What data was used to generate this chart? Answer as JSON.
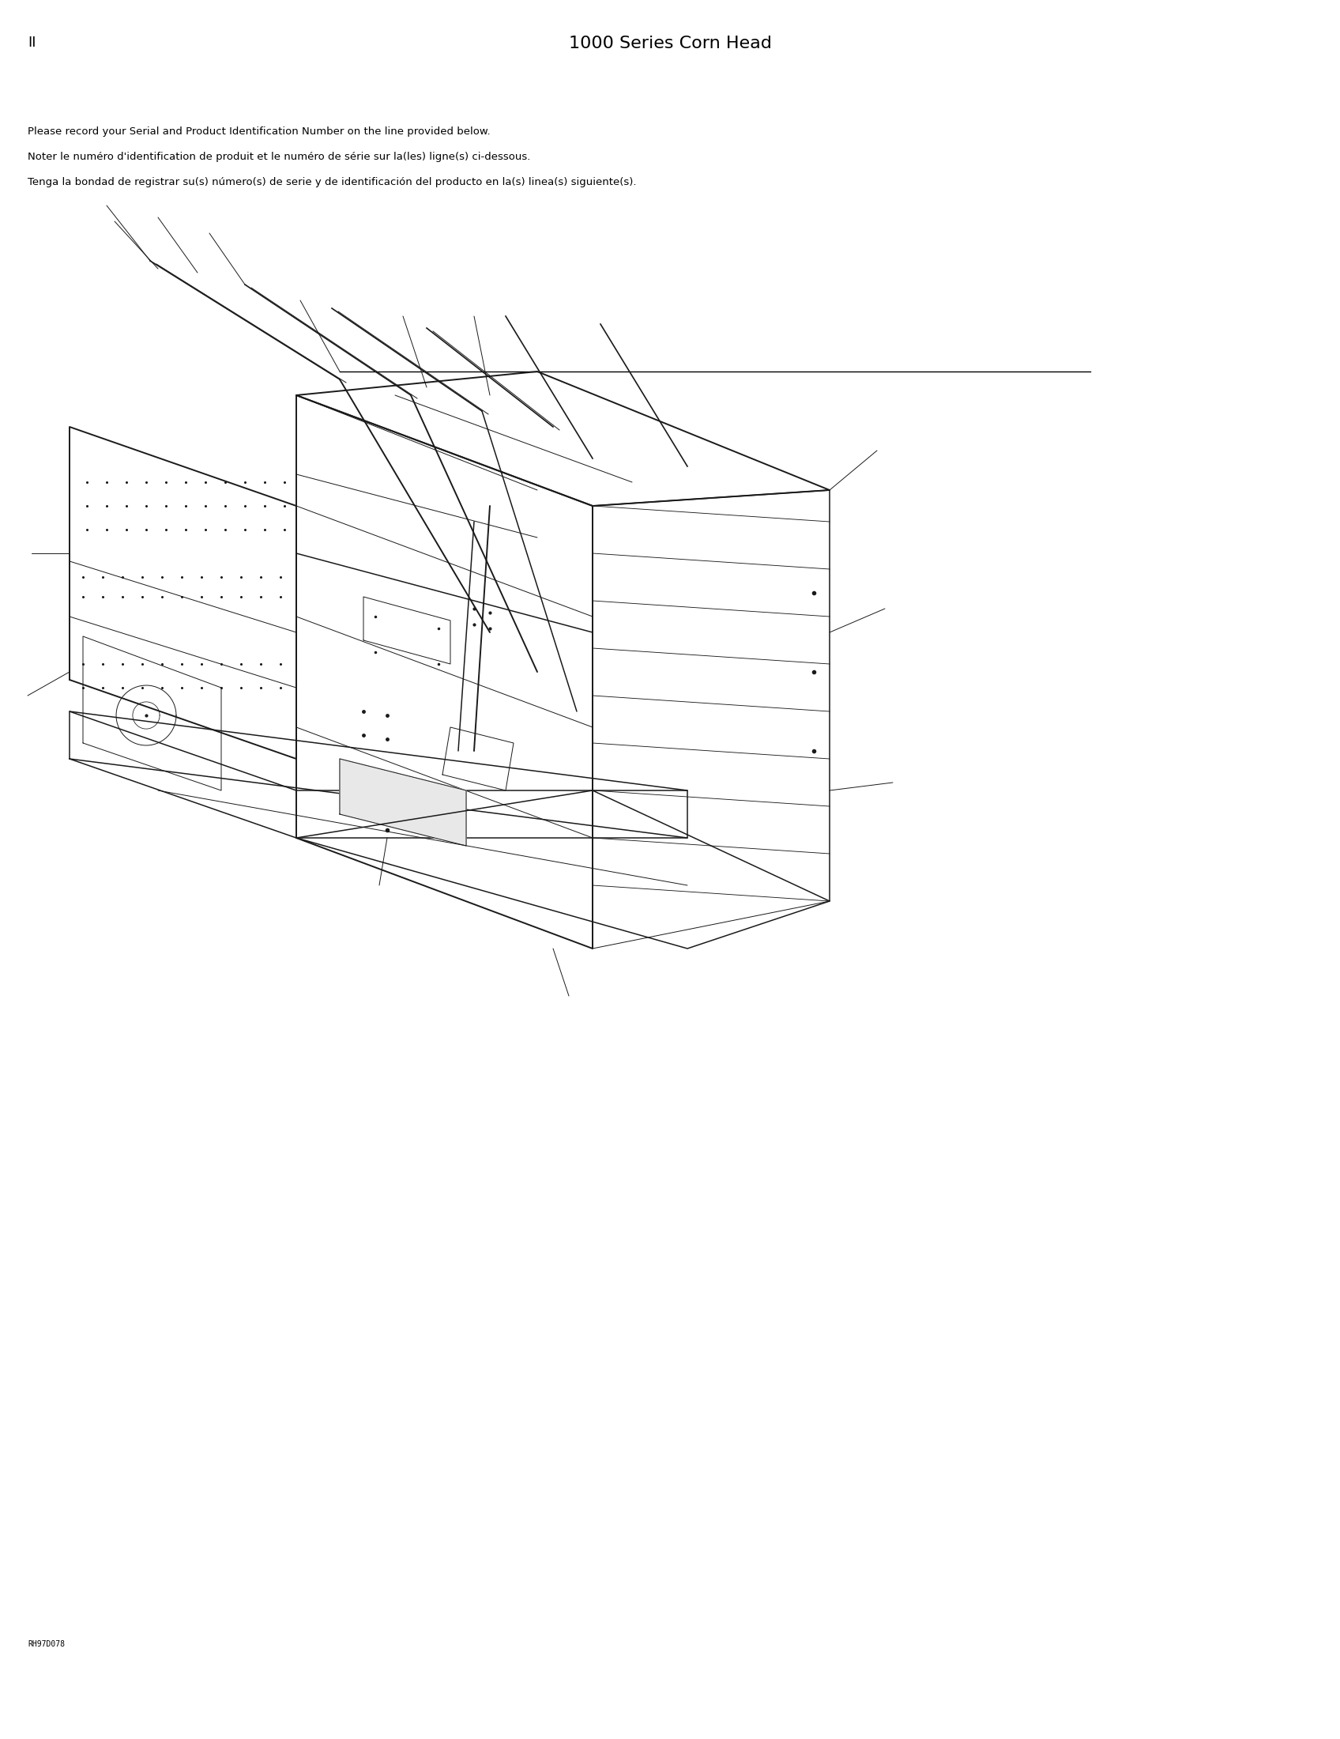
{
  "page_number": "II",
  "title": "1000 Series Corn Head",
  "body_text_line1": "Please record your Serial and Product Identification Number on the line provided below.",
  "body_text_line2": "Noter le numéro d'identification de produit et le numéro de série sur la(les) ligne(s) ci-dessous.",
  "body_text_line3": "Tenga la bondad de registrar su(s) número(s) de serie y de identificación del producto en la(s) linea(s) siguiente(s).",
  "footer_code": "RH97D078",
  "bg_color": "#ffffff",
  "text_color": "#000000",
  "title_fontsize": 16,
  "page_num_fontsize": 13,
  "body_fontsize": 9.5,
  "footer_fontsize": 7
}
